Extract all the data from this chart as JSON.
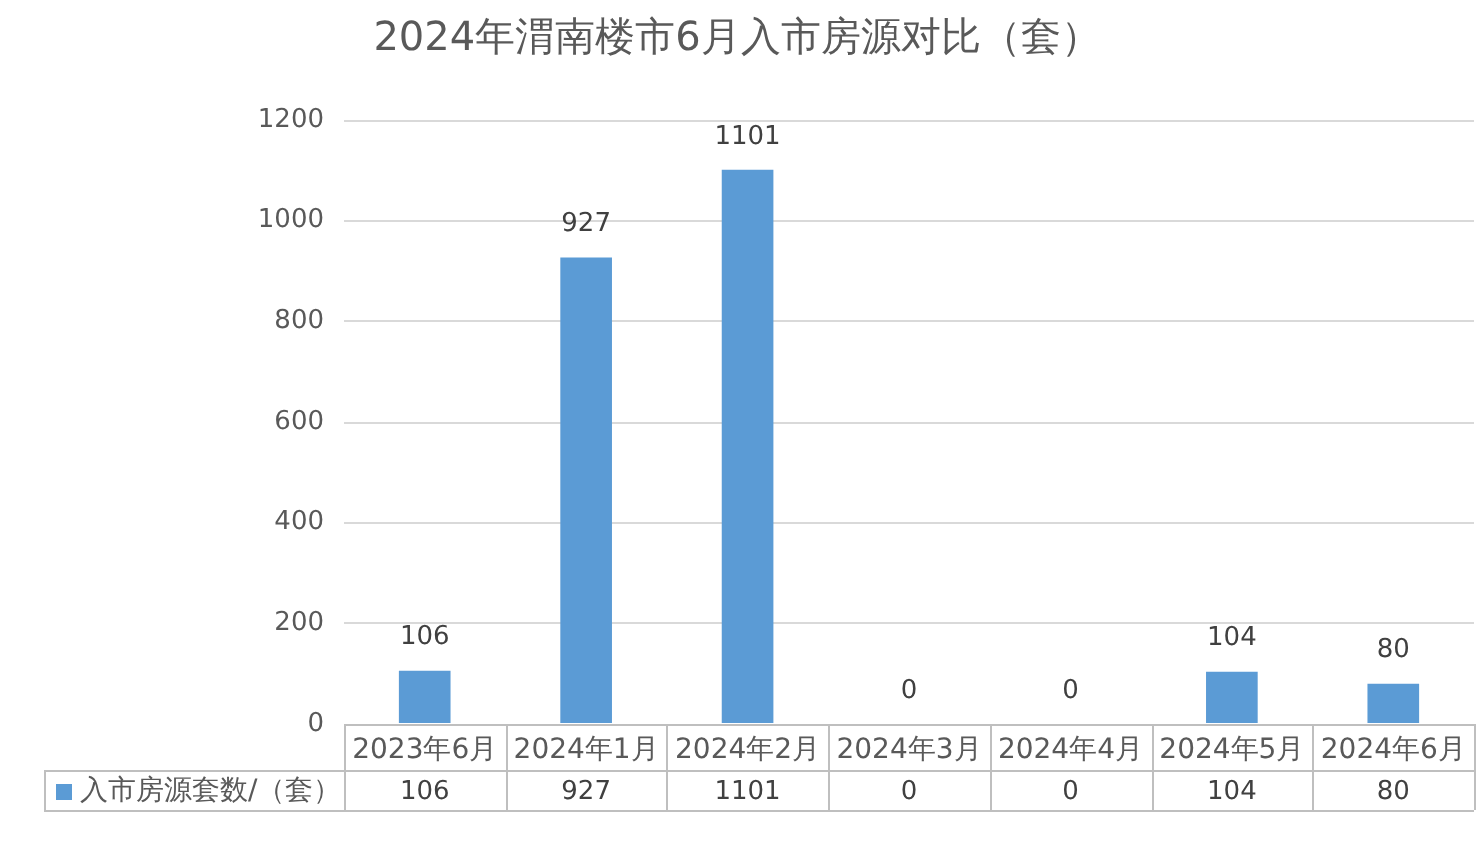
{
  "chart_data": {
    "type": "bar",
    "title": "2024年渭南楼市6月入市房源对比（套）",
    "categories": [
      "2023年6月",
      "2024年1月",
      "2024年2月",
      "2024年3月",
      "2024年4月",
      "2024年5月",
      "2024年6月"
    ],
    "series": [
      {
        "name": "入市房源套数/（套）",
        "color": "#5b9bd5",
        "values": [
          106,
          927,
          1101,
          0,
          0,
          104,
          80
        ]
      }
    ],
    "ylim": [
      0,
      1200
    ],
    "yticks": [
      0,
      200,
      400,
      600,
      800,
      1000,
      1200
    ],
    "grid": "y",
    "legend": "bottom left",
    "data_labels": true,
    "annotations": [
      "106",
      "927",
      "1101",
      "0",
      "0",
      "104",
      "80"
    ]
  }
}
